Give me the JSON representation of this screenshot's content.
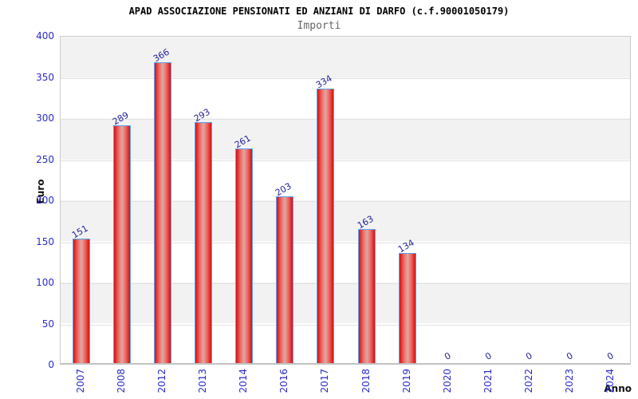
{
  "header": {
    "title": "APAD ASSOCIAZIONE PENSIONATI ED ANZIANI DI DARFO (c.f.90001050179)",
    "subtitle": "Importi"
  },
  "axes": {
    "y_title": "Euro",
    "x_title": "Anno"
  },
  "colors": {
    "tick_label": "#2a2acc",
    "value_label": "#22229a",
    "axis_title": "#111111",
    "bar_border": "#58a5f2",
    "bar_dark": "#d61010",
    "bar_mid": "#ee6a66",
    "bar_light": "#dfa8a2",
    "band_gray": "#f2f2f2",
    "band_white": "#ffffff",
    "plot_border": "#cccccc"
  },
  "chart_data": {
    "type": "bar",
    "title": "APAD ASSOCIAZIONE PENSIONATI ED ANZIANI DI DARFO (c.f.90001050179)",
    "subtitle": "Importi",
    "xlabel": "Anno",
    "ylabel": "Euro",
    "categories": [
      "2007",
      "2008",
      "2012",
      "2013",
      "2014",
      "2016",
      "2017",
      "2018",
      "2019",
      "2020",
      "2021",
      "2022",
      "2023",
      "2024"
    ],
    "values": [
      151,
      289,
      366,
      293,
      261,
      203,
      334,
      163,
      134,
      0,
      0,
      0,
      0,
      0
    ],
    "ylim": [
      0,
      400
    ],
    "yticks": [
      0,
      50,
      100,
      150,
      200,
      250,
      300,
      350,
      400
    ],
    "grid": "horizontal alternating bands every 50",
    "legend": "none",
    "value_labels_rotation_deg": -30,
    "x_labels_rotation": "vertical"
  }
}
